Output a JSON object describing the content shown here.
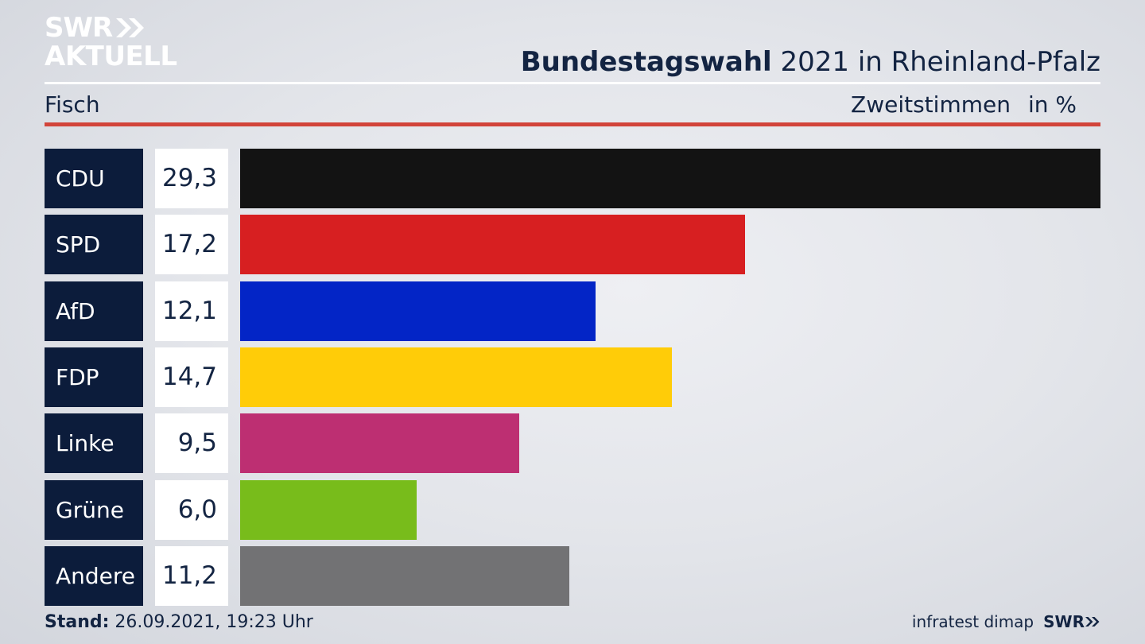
{
  "brand": {
    "line1": "SWR",
    "line2": "AKTUELL",
    "footer_logo": "SWR"
  },
  "header": {
    "title_bold": "Bundestagswahl",
    "title_rest": " 2021 in Rheinland-Pfalz",
    "region": "Fisch",
    "measure": "Zweitstimmen",
    "unit": "in %"
  },
  "colors": {
    "navy": "#0c1c3b",
    "accent_red": "#d2443a"
  },
  "chart_data": {
    "type": "bar",
    "orientation": "horizontal",
    "categories": [
      "CDU",
      "SPD",
      "AfD",
      "FDP",
      "Linke",
      "Grüne",
      "Andere"
    ],
    "values": [
      29.3,
      17.2,
      12.1,
      14.7,
      9.5,
      6.0,
      11.2
    ],
    "value_labels": [
      "29,3",
      "17,2",
      "12,1",
      "14,7",
      "9,5",
      "6,0",
      "11,2"
    ],
    "bar_colors": [
      "#131313",
      "#d71f21",
      "#0325c6",
      "#ffcc08",
      "#bd2f72",
      "#78bc1b",
      "#727274"
    ],
    "xlim": [
      0,
      29.3
    ]
  },
  "footer": {
    "stand_label": "Stand:",
    "stand_value": " 26.09.2021, 19:23 Uhr",
    "source": "infratest dimap"
  }
}
